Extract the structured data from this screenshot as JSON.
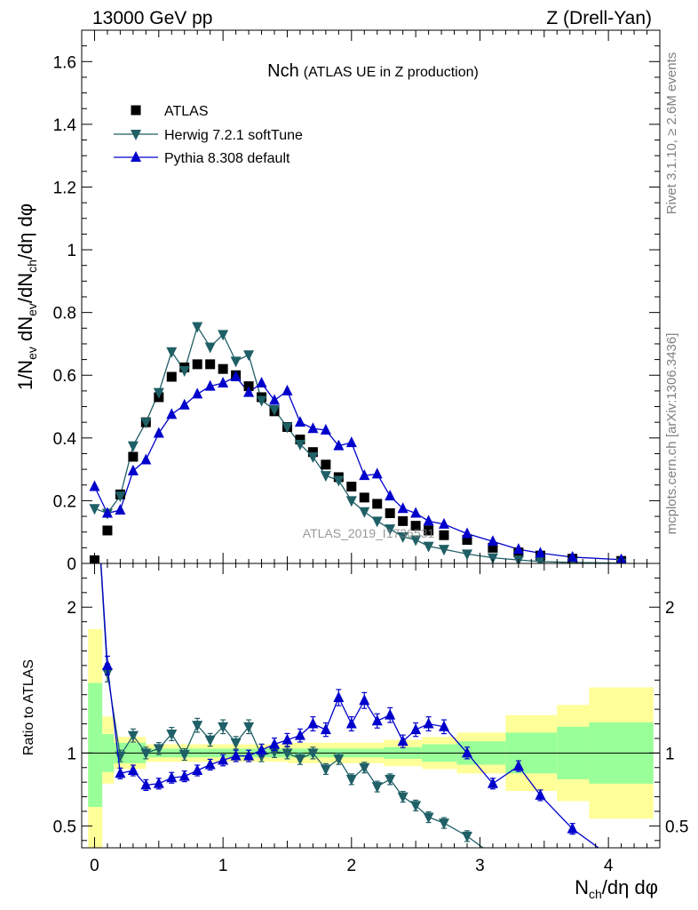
{
  "header": {
    "left": "13000 GeV pp",
    "right": "Z (Drell-Yan)"
  },
  "side": {
    "rivet": "Rivet 3.1.10, ≥ 2.6M events",
    "mcplots": "mcplots.cern.ch [arXiv:1306.3436]"
  },
  "watermark": "ATLAS_2019_I1736531",
  "colors": {
    "atlas": "#000000",
    "herwig": "#1f5f66",
    "pythia": "#0000cc",
    "band_inner": "#99ff99",
    "band_outer": "#ffff99"
  },
  "chart_data": [
    {
      "type": "scatter",
      "title": "Nch",
      "subtitle": "(ATLAS UE in Z production)",
      "ylabel": "1/N_ev dN_ev/dN_ch/dη dφ",
      "xlim": [
        -0.1,
        4.4
      ],
      "ylim": [
        0,
        1.7
      ],
      "yticks": [
        0,
        0.2,
        0.4,
        0.6,
        0.8,
        1,
        1.2,
        1.4,
        1.6
      ],
      "legend_position": "top-left",
      "x": [
        0,
        0.1,
        0.2,
        0.3,
        0.4,
        0.5,
        0.6,
        0.7,
        0.8,
        0.9,
        1.0,
        1.1,
        1.2,
        1.3,
        1.4,
        1.5,
        1.6,
        1.7,
        1.8,
        1.9,
        2.0,
        2.1,
        2.2,
        2.3,
        2.4,
        2.5,
        2.6,
        2.72,
        2.9,
        3.1,
        3.3,
        3.47,
        3.72,
        4.1
      ],
      "series": [
        {
          "name": "ATLAS",
          "marker": "square",
          "values": [
            0.01,
            0.105,
            0.22,
            0.34,
            0.45,
            0.53,
            0.595,
            0.625,
            0.635,
            0.635,
            0.62,
            0.6,
            0.565,
            0.53,
            0.485,
            0.435,
            0.395,
            0.355,
            0.315,
            0.275,
            0.245,
            0.21,
            0.19,
            0.16,
            0.135,
            0.12,
            0.105,
            0.09,
            0.075,
            0.05,
            0.035,
            0.025,
            0.015,
            0.008
          ]
        },
        {
          "name": "Herwig 7.2.1 softTune",
          "marker": "triangle-down",
          "values": [
            0.175,
            0.16,
            0.215,
            0.375,
            0.45,
            0.545,
            0.675,
            0.615,
            0.755,
            0.69,
            0.73,
            0.645,
            0.665,
            0.52,
            0.49,
            0.435,
            0.38,
            0.34,
            0.28,
            0.265,
            0.2,
            0.165,
            0.135,
            0.11,
            0.085,
            0.075,
            0.055,
            0.045,
            0.03,
            0.018,
            0.011,
            0.006,
            0.003,
            0.001
          ]
        },
        {
          "name": "Pythia 8.308 default",
          "marker": "triangle-up",
          "values": [
            0.245,
            0.16,
            0.17,
            0.295,
            0.33,
            0.415,
            0.475,
            0.505,
            0.54,
            0.565,
            0.575,
            0.595,
            0.545,
            0.575,
            0.52,
            0.55,
            0.45,
            0.43,
            0.425,
            0.375,
            0.385,
            0.28,
            0.285,
            0.215,
            0.175,
            0.16,
            0.135,
            0.125,
            0.095,
            0.07,
            0.045,
            0.033,
            0.02,
            0.012
          ]
        }
      ]
    },
    {
      "type": "scatter",
      "ylabel": "Ratio to ATLAS",
      "xlabel": "N_ch/dη dφ",
      "xlim": [
        -0.1,
        4.4
      ],
      "ylim": [
        0.35,
        2.3
      ],
      "yticks": [
        0.5,
        1,
        2
      ],
      "xticks": [
        0,
        1,
        2,
        3,
        4
      ],
      "bands": [
        {
          "x0": -0.05,
          "x1": 0.06,
          "inner": [
            0.63,
            1.48
          ],
          "outer": [
            0.25,
            1.85
          ]
        },
        {
          "x0": 0.06,
          "x1": 0.15,
          "inner": [
            0.87,
            1.13
          ],
          "outer": [
            0.79,
            1.25
          ]
        },
        {
          "x0": 0.15,
          "x1": 0.4,
          "inner": [
            0.93,
            1.07
          ],
          "outer": [
            0.89,
            1.11
          ]
        },
        {
          "x0": 0.4,
          "x1": 1.5,
          "inner": [
            0.97,
            1.03
          ],
          "outer": [
            0.94,
            1.06
          ]
        },
        {
          "x0": 1.5,
          "x1": 2.25,
          "inner": [
            0.97,
            1.03
          ],
          "outer": [
            0.93,
            1.07
          ]
        },
        {
          "x0": 2.25,
          "x1": 2.55,
          "inner": [
            0.96,
            1.04
          ],
          "outer": [
            0.91,
            1.09
          ]
        },
        {
          "x0": 2.55,
          "x1": 2.82,
          "inner": [
            0.94,
            1.06
          ],
          "outer": [
            0.89,
            1.11
          ]
        },
        {
          "x0": 2.82,
          "x1": 3.2,
          "inner": [
            0.92,
            1.08
          ],
          "outer": [
            0.86,
            1.14
          ]
        },
        {
          "x0": 3.2,
          "x1": 3.6,
          "inner": [
            0.86,
            1.14
          ],
          "outer": [
            0.74,
            1.26
          ]
        },
        {
          "x0": 3.6,
          "x1": 3.85,
          "inner": [
            0.82,
            1.18
          ],
          "outer": [
            0.67,
            1.33
          ]
        },
        {
          "x0": 3.85,
          "x1": 4.35,
          "inner": [
            0.79,
            1.21
          ],
          "outer": [
            0.55,
            1.45
          ]
        }
      ],
      "series": [
        {
          "name": "Herwig 7.2.1 softTune",
          "marker": "triangle-down",
          "x": [
            0.1,
            0.2,
            0.3,
            0.4,
            0.5,
            0.6,
            0.7,
            0.8,
            0.9,
            1.0,
            1.1,
            1.2,
            1.3,
            1.4,
            1.5,
            1.6,
            1.7,
            1.8,
            1.9,
            2.0,
            2.1,
            2.2,
            2.3,
            2.4,
            2.5,
            2.6,
            2.72,
            2.9
          ],
          "values": [
            1.55,
            0.98,
            1.12,
            1.0,
            1.03,
            1.13,
            0.99,
            1.19,
            1.09,
            1.18,
            1.07,
            1.18,
            0.98,
            1.01,
            1.0,
            0.96,
            1.0,
            0.89,
            0.96,
            0.82,
            0.9,
            0.77,
            0.82,
            0.7,
            0.64,
            0.56,
            0.52,
            0.43
          ]
        },
        {
          "name": "Pythia 8.308 default",
          "marker": "triangle-up",
          "x": [
            0.1,
            0.2,
            0.3,
            0.4,
            0.5,
            0.6,
            0.7,
            0.8,
            0.9,
            1.0,
            1.1,
            1.2,
            1.3,
            1.4,
            1.5,
            1.6,
            1.7,
            1.8,
            1.9,
            2.0,
            2.1,
            2.2,
            2.3,
            2.4,
            2.5,
            2.6,
            2.72,
            2.9,
            3.1,
            3.3,
            3.47,
            3.72
          ],
          "values": [
            1.6,
            0.86,
            0.88,
            0.78,
            0.79,
            0.83,
            0.84,
            0.88,
            0.92,
            0.95,
            0.98,
            0.98,
            1.02,
            1.06,
            1.09,
            1.12,
            1.2,
            1.16,
            1.38,
            1.2,
            1.36,
            1.22,
            1.26,
            1.08,
            1.16,
            1.2,
            1.18,
            1.0,
            0.79,
            0.91,
            0.71,
            0.48
          ]
        }
      ]
    }
  ]
}
